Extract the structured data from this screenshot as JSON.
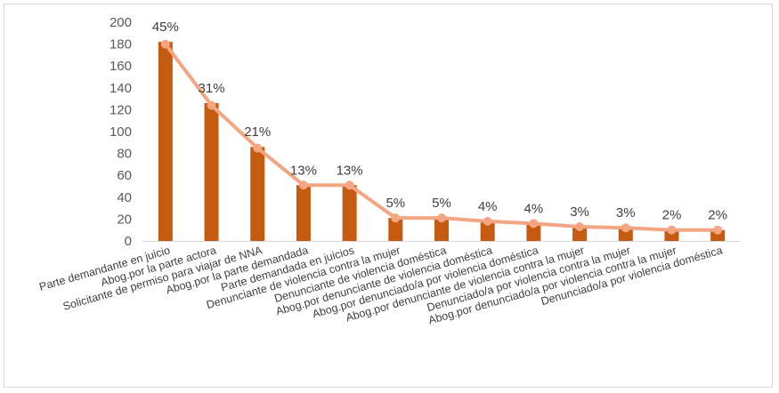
{
  "chart_data": {
    "type": "bar",
    "categories": [
      "Parte demandante en juicio",
      "Abog.por la parte actora",
      "Solicitante de permiso para viajar de NNA",
      "Abog.por la parte demandada",
      "Parte demandada en juicios",
      "Denunciante de violencia contra la mujer",
      "Denunciante de violencia doméstica",
      "Abog.por denunciante de violencia doméstica",
      "Abog.por denunciado/a por violencia doméstica",
      "Abog.por denunciante de violencia contra la mujer",
      "Denunciado/a por violencia contra la mujer",
      "Abog.por denunciado/a por violencia contra la mujer",
      "Denunciado/a por violencia doméstica"
    ],
    "series": [
      {
        "type": "bar",
        "values": [
          182,
          126,
          86,
          51,
          51,
          21,
          21,
          17,
          16,
          13,
          12,
          10,
          10
        ]
      },
      {
        "type": "line",
        "values": [
          180,
          124,
          85,
          51,
          51,
          21,
          21,
          18,
          16,
          13,
          12,
          10,
          10
        ]
      }
    ],
    "data_labels": [
      "45%",
      "31%",
      "21%",
      "13%",
      "13%",
      "5%",
      "5%",
      "4%",
      "4%",
      "3%",
      "3%",
      "2%",
      "2%"
    ],
    "ylim": [
      0,
      200
    ],
    "yticks": [
      0,
      20,
      40,
      60,
      80,
      100,
      120,
      140,
      160,
      180,
      200
    ],
    "grid": false,
    "legend": "none",
    "colors": {
      "bar": "#c55a11",
      "line": "#f4a582",
      "marker": "#f4a582"
    }
  }
}
